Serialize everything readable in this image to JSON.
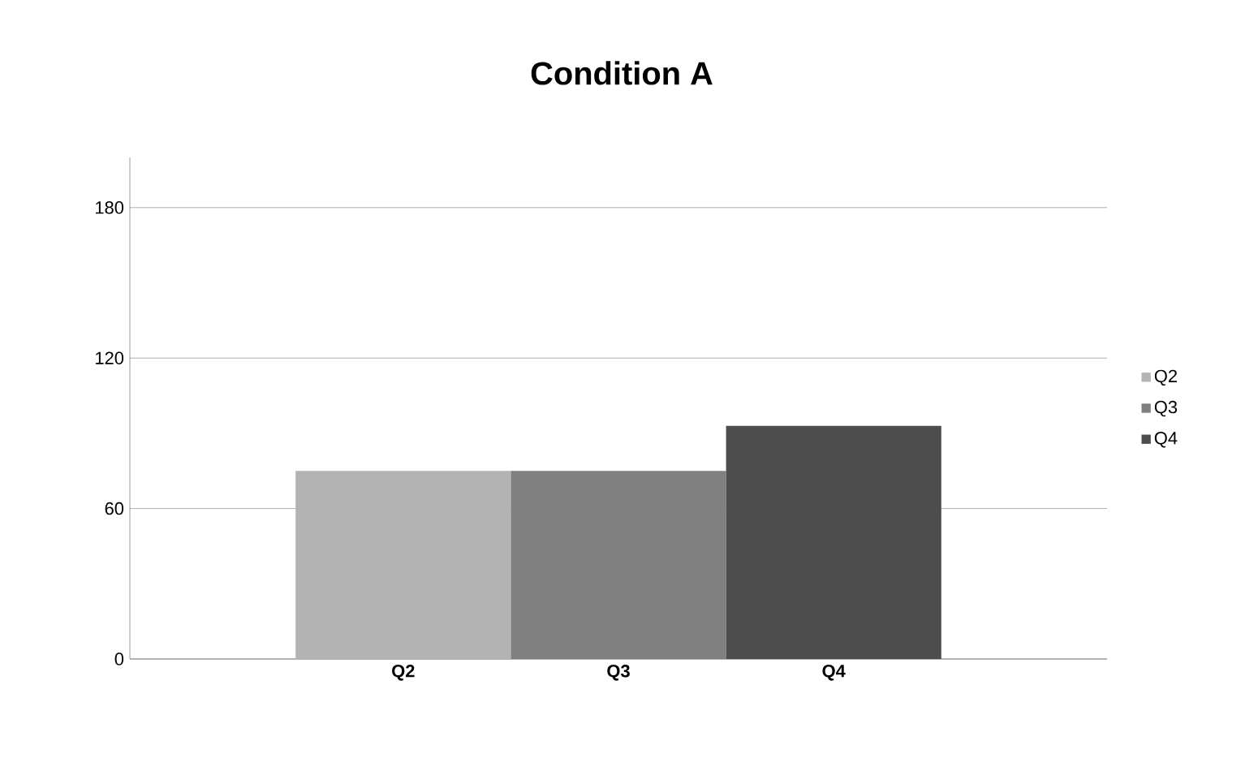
{
  "chart_data": {
    "type": "bar",
    "title": "Condition A",
    "categories": [
      "Q2",
      "Q3",
      "Q4"
    ],
    "series": [
      {
        "name": "Q2",
        "color": "#b3b3b3",
        "values": [
          75,
          null,
          null
        ]
      },
      {
        "name": "Q3",
        "color": "#808080",
        "values": [
          null,
          75,
          null
        ]
      },
      {
        "name": "Q4",
        "color": "#4d4d4d",
        "values": [
          null,
          null,
          93
        ]
      }
    ],
    "ylim": [
      0,
      200
    ],
    "yticks": [
      0,
      60,
      120,
      180
    ],
    "grid": "y",
    "legend": "right"
  }
}
